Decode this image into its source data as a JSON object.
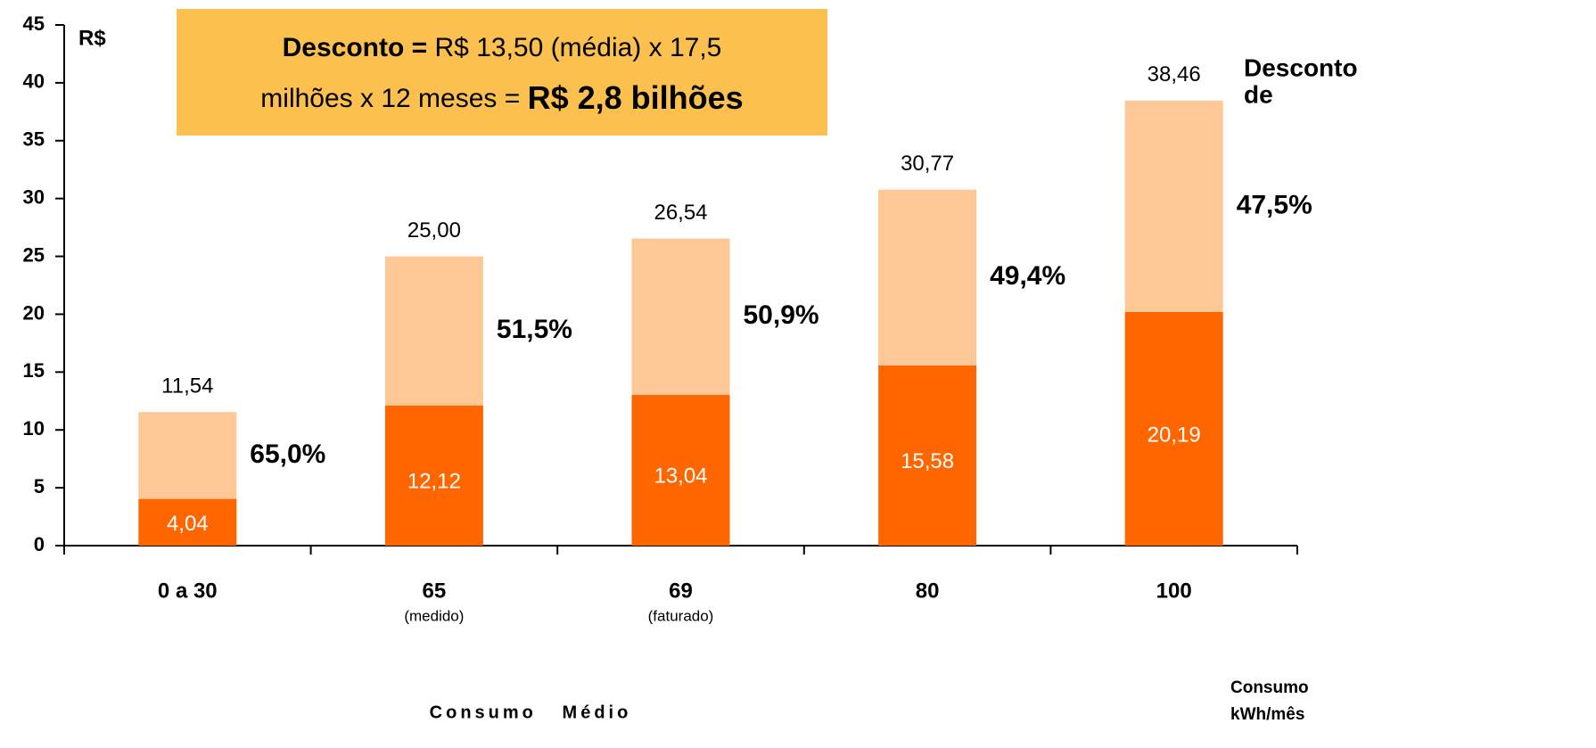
{
  "chart_data": {
    "type": "stacked_bar",
    "y_label": "R$",
    "x_label": "Consumo   Médio",
    "x_unit_label": [
      "Consumo",
      "kWh/mês"
    ],
    "categories": [
      "0 a 30",
      "65",
      "69",
      "80",
      "100"
    ],
    "category_notes": [
      null,
      "(medido)",
      "(faturado)",
      null,
      null
    ],
    "series": [
      {
        "color": "#ff6600",
        "values": [
          4.04,
          12.12,
          13.04,
          15.58,
          20.19
        ],
        "value_labels": [
          "4,04",
          "12,12",
          "13,04",
          "15,58",
          "20,19"
        ]
      },
      {
        "color": "#fdc896",
        "values": [
          7.5,
          12.88,
          13.5,
          15.19,
          18.27
        ]
      }
    ],
    "totals": [
      11.54,
      25.0,
      26.54,
      30.77,
      38.46
    ],
    "total_labels": [
      "11,54",
      "25,00",
      "26,54",
      "30,77",
      "38,46"
    ],
    "discounts": [
      65.0,
      51.5,
      50.9,
      49.4,
      47.5
    ],
    "discount_labels": [
      "65,0%",
      "51,5%",
      "50,9%",
      "49,4%",
      "47,5%"
    ],
    "discount_title": [
      "Desconto",
      "de"
    ],
    "annotation": {
      "bold1": "Desconto =",
      "text1": "R$ 13,50 (média) x 17,5",
      "text2": "milhões x 12 meses =",
      "bold2": "R$ 2,8 bilhões"
    },
    "ylim": [
      0,
      45
    ],
    "yticks": [
      0,
      5,
      10,
      15,
      20,
      25,
      30,
      35,
      40,
      45
    ]
  }
}
